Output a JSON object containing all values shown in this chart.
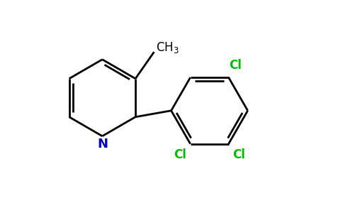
{
  "background_color": "#ffffff",
  "bond_color": "#000000",
  "nitrogen_color": "#0000cd",
  "chlorine_color": "#00bb00",
  "methyl_color": "#000000",
  "line_width": 2.0,
  "figsize": [
    4.84,
    3.0
  ],
  "dpi": 100,
  "xlim": [
    0,
    9.68
  ],
  "ylim": [
    0,
    6.0
  ]
}
